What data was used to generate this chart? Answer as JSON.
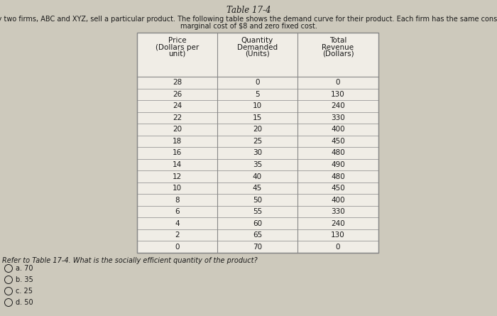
{
  "title": "Table 17-4",
  "description_line1": "Only two firms, ABC and XYZ, sell a particular product. The following table shows the demand curve for their product. Each firm has the same constant",
  "description_line2": "marginal cost of $8 and zero fixed cost.",
  "col_headers_line1": [
    "Price",
    "Quantity",
    "Total"
  ],
  "col_headers_line2": [
    "(Dollars per",
    "Demanded",
    "Revenue"
  ],
  "col_headers_line3": [
    "unit)",
    "(Units)",
    "(Dollars)"
  ],
  "rows": [
    [
      28,
      0,
      0
    ],
    [
      26,
      5,
      130
    ],
    [
      24,
      10,
      240
    ],
    [
      22,
      15,
      330
    ],
    [
      20,
      20,
      400
    ],
    [
      18,
      25,
      450
    ],
    [
      16,
      30,
      480
    ],
    [
      14,
      35,
      490
    ],
    [
      12,
      40,
      480
    ],
    [
      10,
      45,
      450
    ],
    [
      8,
      50,
      400
    ],
    [
      6,
      55,
      330
    ],
    [
      4,
      60,
      240
    ],
    [
      2,
      65,
      130
    ],
    [
      0,
      70,
      0
    ]
  ],
  "question": "Refer to Table 17-4. What is the socially efficient quantity of the product?",
  "choices": [
    "a. 70",
    "b. 35",
    "c. 25",
    "d. 50"
  ],
  "bg_color": "#cdc9bc",
  "table_fill": "#f0ede6",
  "border_color": "#888888",
  "text_color": "#1a1a1a",
  "title_fontsize": 8.5,
  "desc_fontsize": 7.0,
  "table_fontsize": 7.5,
  "header_fontsize": 7.5,
  "question_fontsize": 7.0,
  "choice_fontsize": 7.0
}
